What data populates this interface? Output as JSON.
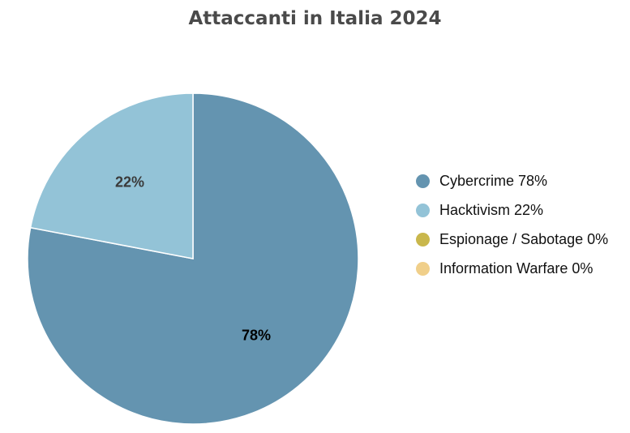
{
  "chart_data": {
    "type": "pie",
    "title": "Attaccanti in Italia 2024",
    "categories": [
      "Cybercrime",
      "Hacktivism",
      "Espionage / Sabotage",
      "Information Warfare"
    ],
    "values": [
      78,
      22,
      0,
      0
    ],
    "value_labels": [
      "78%",
      "22%",
      "0%",
      "0%"
    ],
    "legend_labels": [
      "Cybercrime 78%",
      "Hacktivism 22%",
      "Espionage / Sabotage 0%",
      "Information Warfare 0%"
    ],
    "colors": [
      "#6494b0",
      "#93c3d7",
      "#c9b74c",
      "#f0cf8a"
    ],
    "label_color": "#1a1a1a",
    "start": "top, clockwise",
    "legend_position": "right"
  }
}
